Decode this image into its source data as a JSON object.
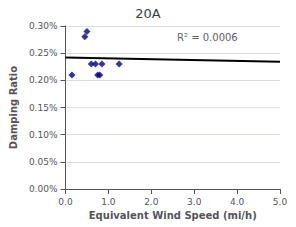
{
  "chart_data": {
    "type": "scatter",
    "title": "20A",
    "xlabel": "Equivalent Wind Speed (mi/h)",
    "ylabel": "Damping Ratio",
    "series": [
      {
        "type": "scatter",
        "color": "#00008B",
        "marker": "diamond",
        "x": [
          0.15,
          0.45,
          0.5,
          0.6,
          0.7,
          0.75,
          0.8,
          0.85,
          1.25
        ],
        "values": [
          0.0021,
          0.0028,
          0.0029,
          0.0023,
          0.0023,
          0.0021,
          0.0021,
          0.0023,
          0.0023
        ]
      },
      {
        "type": "line",
        "color": "#000000",
        "line_style": "solid",
        "x": [
          0.0,
          5.0
        ],
        "values": [
          0.00242,
          0.00234
        ]
      }
    ],
    "annotations": [
      {
        "text": "R² = 0.0006",
        "x": 2.6,
        "y": 0.00278
      }
    ],
    "xlim": [
      0.0,
      5.0
    ],
    "ylim": [
      0.0,
      0.003
    ],
    "xticks": [
      {
        "value": 0.0,
        "label": "0.0"
      },
      {
        "value": 1.0,
        "label": "1.0"
      },
      {
        "value": 2.0,
        "label": "2.0"
      },
      {
        "value": 3.0,
        "label": "3.0"
      },
      {
        "value": 4.0,
        "label": "4.0"
      },
      {
        "value": 5.0,
        "label": "5.0"
      }
    ],
    "yticks": [
      {
        "value": 0.0,
        "label": "0.00%"
      },
      {
        "value": 0.0005,
        "label": "0.05%"
      },
      {
        "value": 0.001,
        "label": "0.10%"
      },
      {
        "value": 0.0015,
        "label": "0.15%"
      },
      {
        "value": 0.002,
        "label": "0.20%"
      },
      {
        "value": 0.0025,
        "label": "0.25%"
      },
      {
        "value": 0.003,
        "label": "0.30%"
      }
    ],
    "grid": "y"
  }
}
